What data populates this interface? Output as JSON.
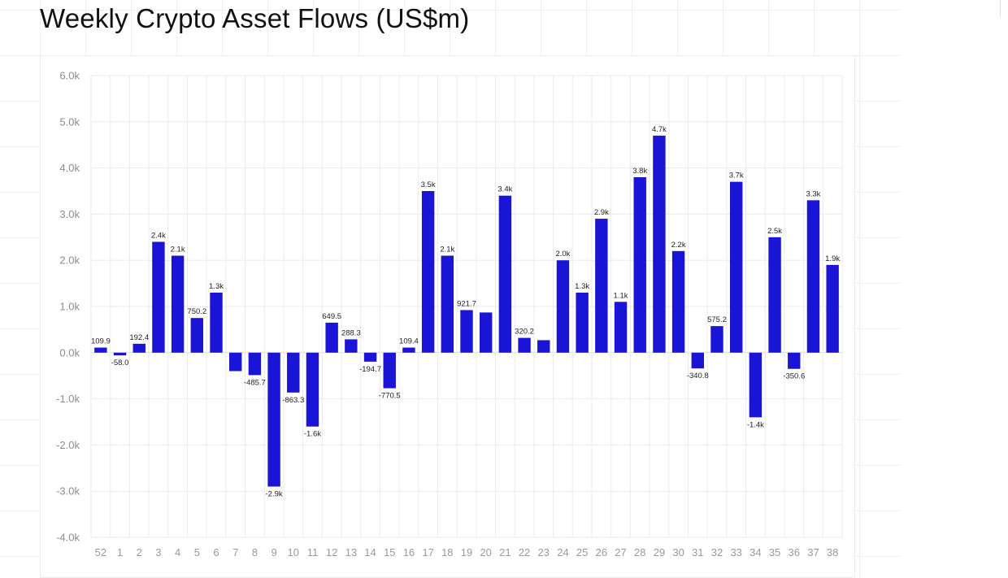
{
  "title": "Weekly Crypto Asset Flows (US$m)",
  "colors": {
    "bar": "#1a14d6",
    "grid": "#ebebeb",
    "zero_line": "#dcdcdc"
  },
  "chart_data": {
    "type": "bar",
    "title": "Weekly Crypto Asset Flows (US$m)",
    "xlabel": "",
    "ylabel": "",
    "ylim": [
      -4000,
      6000
    ],
    "yticks": [
      {
        "value": 6000,
        "label": "6.0k"
      },
      {
        "value": 5000,
        "label": "5.0k"
      },
      {
        "value": 4000,
        "label": "4.0k"
      },
      {
        "value": 3000,
        "label": "3.0k"
      },
      {
        "value": 2000,
        "label": "2.0k"
      },
      {
        "value": 1000,
        "label": "1.0k"
      },
      {
        "value": 0,
        "label": "0.0k"
      },
      {
        "value": -1000,
        "label": "-1.0k"
      },
      {
        "value": -2000,
        "label": "-2.0k"
      },
      {
        "value": -3000,
        "label": "-3.0k"
      },
      {
        "value": -4000,
        "label": "-4.0k"
      }
    ],
    "grid": true,
    "legend": "none",
    "categories": [
      "52",
      "1",
      "2",
      "3",
      "4",
      "5",
      "6",
      "7",
      "8",
      "9",
      "10",
      "11",
      "12",
      "13",
      "14",
      "15",
      "16",
      "17",
      "18",
      "19",
      "20",
      "21",
      "22",
      "23",
      "24",
      "25",
      "26",
      "27",
      "28",
      "29",
      "30",
      "31",
      "32",
      "33",
      "34",
      "35",
      "36",
      "37",
      "38"
    ],
    "values": [
      109.9,
      -58.0,
      192.4,
      2400,
      2100,
      750.2,
      1300,
      -400,
      -485.7,
      -2900,
      -863.3,
      -1600,
      649.5,
      288.3,
      -194.7,
      -770.5,
      109.4,
      3500,
      2100,
      921.7,
      870,
      3400,
      320.2,
      270,
      2000,
      1300,
      2900,
      1100,
      3800,
      4700,
      2200,
      -340.8,
      575.2,
      3700,
      -1400,
      2500,
      -350.6,
      3300,
      1900
    ],
    "data_labels": [
      "109.9",
      "-58.0",
      "192.4",
      "2.4k",
      "2.1k",
      "750.2",
      "1.3k",
      "",
      "-485.7",
      "-2.9k",
      "-863.3",
      "-1.6k",
      "649.5",
      "288.3",
      "-194.7",
      "-770.5",
      "109.4",
      "3.5k",
      "2.1k",
      "921.7",
      "",
      "3.4k",
      "320.2",
      "",
      "2.0k",
      "1.3k",
      "2.9k",
      "1.1k",
      "3.8k",
      "4.7k",
      "2.2k",
      "-340.8",
      "575.2",
      "3.7k",
      "-1.4k",
      "2.5k",
      "-350.6",
      "3.3k",
      "1.9k"
    ]
  }
}
